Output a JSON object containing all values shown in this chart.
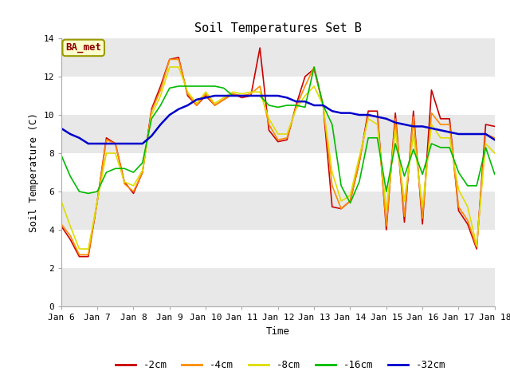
{
  "title": "Soil Temperatures Set B",
  "xlabel": "Time",
  "ylabel": "Soil Temperature (C)",
  "annotation": "BA_met",
  "ylim": [
    0,
    14
  ],
  "yticks": [
    0,
    2,
    4,
    6,
    8,
    10,
    12,
    14
  ],
  "xtick_labels": [
    "Jan 6",
    "Jan 7",
    "Jan 8",
    "Jan 9",
    "Jan 10",
    "Jan 11",
    "Jan 12",
    "Jan 13",
    "Jan 14",
    "Jan 15",
    "Jan 16",
    "Jan 17",
    "Jan 18"
  ],
  "fig_bg": "#ffffff",
  "plot_bg": "#ffffff",
  "band_colors": [
    "#e8e8e8",
    "#ffffff"
  ],
  "series": {
    "-2cm": {
      "color": "#cc0000",
      "lw": 1.2,
      "x": [
        0,
        0.25,
        0.5,
        0.75,
        1.0,
        1.25,
        1.5,
        1.75,
        2.0,
        2.25,
        2.5,
        2.75,
        3.0,
        3.25,
        3.5,
        3.75,
        4.0,
        4.25,
        4.5,
        4.75,
        5.0,
        5.25,
        5.5,
        5.75,
        6.0,
        6.25,
        6.5,
        6.75,
        7.0,
        7.25,
        7.5,
        7.75,
        8.0,
        8.25,
        8.5,
        8.75,
        9.0,
        9.25,
        9.5,
        9.75,
        10.0,
        10.25,
        10.5,
        10.75,
        11.0,
        11.25,
        11.5,
        11.75,
        12.0
      ],
      "y": [
        4.2,
        3.5,
        2.6,
        2.6,
        5.5,
        8.8,
        8.5,
        6.5,
        5.9,
        7.0,
        10.3,
        11.5,
        12.9,
        13.0,
        11.0,
        10.5,
        11.0,
        10.5,
        10.8,
        11.1,
        10.9,
        11.0,
        13.5,
        9.2,
        8.6,
        8.7,
        10.5,
        12.0,
        12.4,
        10.5,
        5.2,
        5.1,
        5.5,
        7.5,
        10.2,
        10.2,
        4.0,
        10.1,
        4.4,
        10.2,
        4.3,
        11.3,
        9.8,
        9.8,
        5.0,
        4.3,
        3.0,
        9.5,
        9.4
      ]
    },
    "-4cm": {
      "color": "#ff8c00",
      "lw": 1.2,
      "x": [
        0,
        0.25,
        0.5,
        0.75,
        1.0,
        1.25,
        1.5,
        1.75,
        2.0,
        2.25,
        2.5,
        2.75,
        3.0,
        3.25,
        3.5,
        3.75,
        4.0,
        4.25,
        4.5,
        4.75,
        5.0,
        5.25,
        5.5,
        5.75,
        6.0,
        6.25,
        6.5,
        6.75,
        7.0,
        7.25,
        7.5,
        7.75,
        8.0,
        8.25,
        8.5,
        8.75,
        9.0,
        9.25,
        9.5,
        9.75,
        10.0,
        10.25,
        10.5,
        10.75,
        11.0,
        11.25,
        11.5,
        11.75,
        12.0
      ],
      "y": [
        4.3,
        3.7,
        2.7,
        2.7,
        5.5,
        8.7,
        8.5,
        6.4,
        6.0,
        7.0,
        10.2,
        11.3,
        12.9,
        12.9,
        11.1,
        10.5,
        11.1,
        10.5,
        10.8,
        11.1,
        11.0,
        11.1,
        11.5,
        9.5,
        8.7,
        8.8,
        10.4,
        11.5,
        12.5,
        10.5,
        6.3,
        5.1,
        5.5,
        7.5,
        10.0,
        9.9,
        4.2,
        9.8,
        4.7,
        9.9,
        4.6,
        10.1,
        9.5,
        9.5,
        5.2,
        4.5,
        3.1,
        9.0,
        8.8
      ]
    },
    "-8cm": {
      "color": "#dddd00",
      "lw": 1.2,
      "x": [
        0,
        0.25,
        0.5,
        0.75,
        1.0,
        1.25,
        1.5,
        1.75,
        2.0,
        2.25,
        2.5,
        2.75,
        3.0,
        3.25,
        3.5,
        3.75,
        4.0,
        4.25,
        4.5,
        4.75,
        5.0,
        5.25,
        5.5,
        5.75,
        6.0,
        6.25,
        6.5,
        6.75,
        7.0,
        7.25,
        7.5,
        7.75,
        8.0,
        8.25,
        8.5,
        8.75,
        9.0,
        9.25,
        9.5,
        9.75,
        10.0,
        10.25,
        10.5,
        10.75,
        11.0,
        11.25,
        11.5,
        11.75,
        12.0
      ],
      "y": [
        5.5,
        4.2,
        3.0,
        3.0,
        5.5,
        8.0,
        8.0,
        6.5,
        6.3,
        7.1,
        10.0,
        11.0,
        12.5,
        12.5,
        11.2,
        10.6,
        11.2,
        10.6,
        10.9,
        11.2,
        11.1,
        11.2,
        11.2,
        9.8,
        9.0,
        9.0,
        10.3,
        11.0,
        11.5,
        10.5,
        7.0,
        5.5,
        5.8,
        7.8,
        9.8,
        9.5,
        5.0,
        9.2,
        5.5,
        9.0,
        5.2,
        9.5,
        8.8,
        8.8,
        6.1,
        5.2,
        3.2,
        8.5,
        8.0
      ]
    },
    "-16cm": {
      "color": "#00bb00",
      "lw": 1.2,
      "x": [
        0,
        0.25,
        0.5,
        0.75,
        1.0,
        1.25,
        1.5,
        1.75,
        2.0,
        2.25,
        2.5,
        2.75,
        3.0,
        3.25,
        3.5,
        3.75,
        4.0,
        4.25,
        4.5,
        4.75,
        5.0,
        5.25,
        5.5,
        5.75,
        6.0,
        6.25,
        6.5,
        6.75,
        7.0,
        7.25,
        7.5,
        7.75,
        8.0,
        8.25,
        8.5,
        8.75,
        9.0,
        9.25,
        9.5,
        9.75,
        10.0,
        10.25,
        10.5,
        10.75,
        11.0,
        11.25,
        11.5,
        11.75,
        12.0
      ],
      "y": [
        7.9,
        6.8,
        6.0,
        5.9,
        6.0,
        7.0,
        7.2,
        7.2,
        7.0,
        7.5,
        9.8,
        10.5,
        11.4,
        11.5,
        11.5,
        11.5,
        11.5,
        11.5,
        11.4,
        11.0,
        11.0,
        11.0,
        11.0,
        10.5,
        10.4,
        10.5,
        10.5,
        10.4,
        12.5,
        10.5,
        9.5,
        6.3,
        5.4,
        6.5,
        8.8,
        8.8,
        6.0,
        8.5,
        6.8,
        8.2,
        6.9,
        8.5,
        8.3,
        8.3,
        7.0,
        6.3,
        6.3,
        8.3,
        6.9
      ]
    },
    "-32cm": {
      "color": "#0000cc",
      "lw": 1.8,
      "x": [
        0,
        0.25,
        0.5,
        0.75,
        1.0,
        1.25,
        1.5,
        1.75,
        2.0,
        2.25,
        2.5,
        2.75,
        3.0,
        3.25,
        3.5,
        3.75,
        4.0,
        4.25,
        4.5,
        4.75,
        5.0,
        5.25,
        5.5,
        5.75,
        6.0,
        6.25,
        6.5,
        6.75,
        7.0,
        7.25,
        7.5,
        7.75,
        8.0,
        8.25,
        8.5,
        8.75,
        9.0,
        9.25,
        9.5,
        9.75,
        10.0,
        10.25,
        10.5,
        10.75,
        11.0,
        11.25,
        11.5,
        11.75,
        12.0
      ],
      "y": [
        9.3,
        9.0,
        8.8,
        8.5,
        8.5,
        8.5,
        8.5,
        8.5,
        8.5,
        8.5,
        8.9,
        9.5,
        10.0,
        10.3,
        10.5,
        10.8,
        10.9,
        11.0,
        11.0,
        11.0,
        11.0,
        11.0,
        11.0,
        11.0,
        11.0,
        10.9,
        10.7,
        10.7,
        10.5,
        10.5,
        10.2,
        10.1,
        10.1,
        10.0,
        10.0,
        9.9,
        9.8,
        9.6,
        9.5,
        9.4,
        9.4,
        9.3,
        9.2,
        9.1,
        9.0,
        9.0,
        9.0,
        9.0,
        8.7
      ]
    }
  },
  "legend": [
    {
      "label": "-2cm",
      "color": "#cc0000"
    },
    {
      "label": "-4cm",
      "color": "#ff8c00"
    },
    {
      "label": "-8cm",
      "color": "#dddd00"
    },
    {
      "label": "-16cm",
      "color": "#00bb00"
    },
    {
      "label": "-32cm",
      "color": "#0000cc"
    }
  ]
}
